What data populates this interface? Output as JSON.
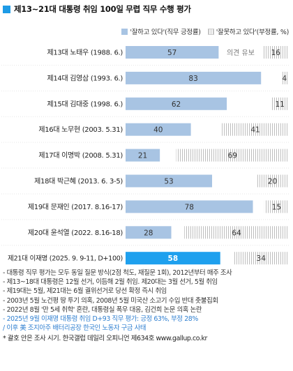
{
  "title": "제13~21대 대통령 취임 100일 무렵 직무 수행 평가",
  "legend": {
    "positive": "'잘하고 있다'(직무 긍정률)",
    "negative": "'잘못하고 있다'(부정률, %)"
  },
  "colors": {
    "title_square": "#1e9be6",
    "positive": "#a8c4e3",
    "positive_highlight": "#1ea0ee",
    "negative_stripe": "#bdbdbd"
  },
  "chart_data": {
    "type": "bar",
    "orientation": "horizontal",
    "stacked": true,
    "unit": "%",
    "categories": [
      "제13대 노태우 (1988. 6.)",
      "제14대 김영삼 (1993. 6.)",
      "제15대 김대중 (1998. 6.)",
      "제16대 노무현 (2003. 5.31)",
      "제17대 이명박 (2008. 5.31)",
      "제18대 박근혜 (2013. 6. 3-5)",
      "제19대 문재인 (2017. 8.16-17)",
      "제20대 윤석열 (2022. 8.16-18)",
      "제21대 이재명 (2025. 9. 9-11, D+100)"
    ],
    "series": [
      {
        "name": "'잘하고 있다'(직무 긍정률)",
        "values": [
          57,
          83,
          62,
          40,
          21,
          53,
          78,
          28,
          58
        ]
      },
      {
        "name": "'잘못하고 있다'(부정률, %)",
        "values": [
          16,
          4,
          11,
          41,
          69,
          20,
          15,
          64,
          34
        ]
      }
    ],
    "annotations": [
      {
        "category": "제13대 노태우 (1988. 6.)",
        "text": "의견 유보"
      }
    ],
    "highlight_index": 8
  },
  "notes": [
    "- 대통령 직무 평가는 모두 동일 질문 방식(2점 척도, 재질문 1회), 2012년부터 매주 조사",
    "- 제13~18대 대통령은 12월 선거, 이듬해 2월 취임. 제20대는 3월 선거, 5월 취임",
    "- 제19대는 5월, 제21대는 6월 궐위선거로 당선 확정 즉시 취임",
    "- 2003년 5월 노건평 땅 투기 의혹, 2008년 5월 미국산 소고기 수입 반대 촛불집회",
    "- 2022년 8월 '만 5세 취학' 혼란, 대통령실 폭우 대응, 김건희 논문 의혹 논란",
    "- 2025년 9월 이재명 대통령 취임 D+93 직무 평가: 긍정 63%, 부정 28%",
    "  / 이후 美 조지아주 배터리공장 한국인 노동자 구금 사태",
    "* 괄호 안은 조사 시기. 한국갤럽 데일리 오피니언 제634호 www.gallup.co.kr"
  ]
}
